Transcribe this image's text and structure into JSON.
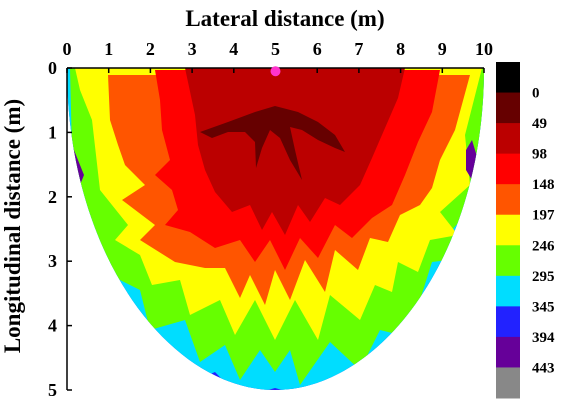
{
  "chart_data": {
    "type": "heatmap",
    "x_label": "Lateral distance (m)",
    "y_label": "Longitudinal distance (m)",
    "x_ticks": [
      "0",
      "1",
      "2",
      "3",
      "4",
      "5",
      "6",
      "7",
      "8",
      "9",
      "10"
    ],
    "y_ticks": [
      "0",
      "1",
      "2",
      "3",
      "4",
      "5"
    ],
    "x_range": [
      0,
      10
    ],
    "y_range": [
      0,
      5
    ],
    "x_axis_position": "top",
    "y_axis_inverted": true,
    "grid": false,
    "legend_placement": "right",
    "source_point": {
      "x": 5.0,
      "y": 0.05,
      "color": "#ff33cc"
    },
    "colorbar": {
      "levels": [
        "0",
        "49",
        "98",
        "148",
        "197",
        "246",
        "295",
        "345",
        "394",
        "443"
      ],
      "colors": [
        "#000000",
        "#660000",
        "#bb0000",
        "#ff0000",
        "#ff5500",
        "#ffff00",
        "#66ff00",
        "#00ddff",
        "#2222ff",
        "#660099",
        "#888888"
      ]
    }
  }
}
